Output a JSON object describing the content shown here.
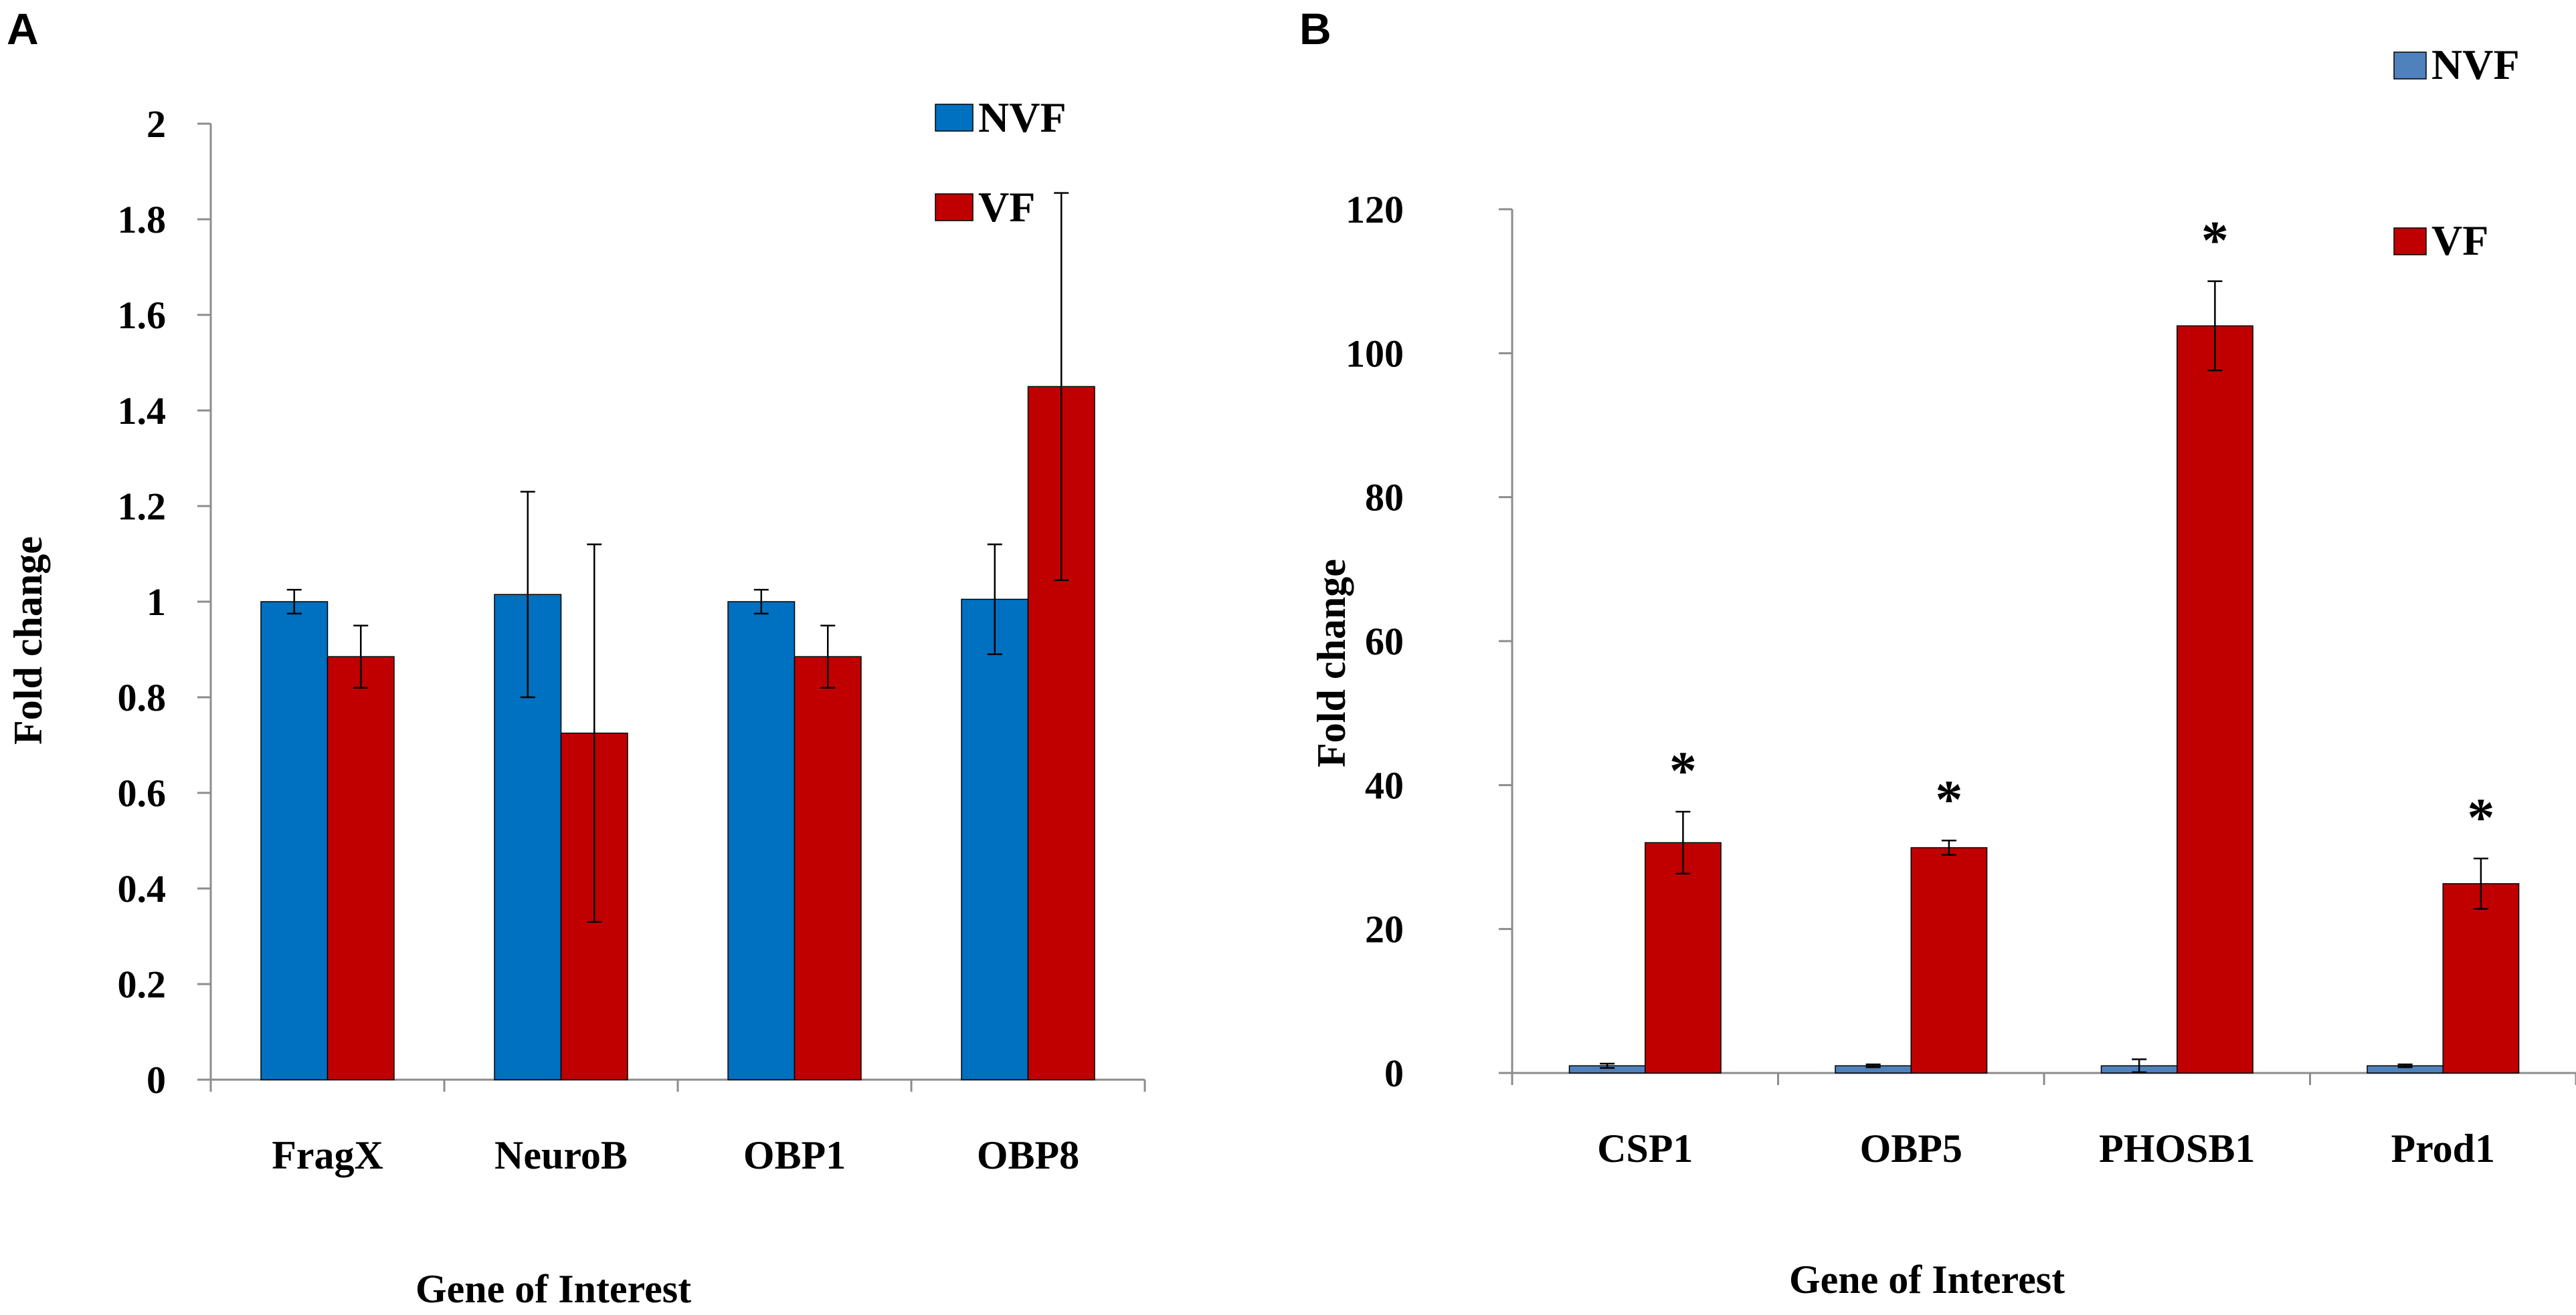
{
  "chart_data": [
    {
      "panel": "A",
      "type": "bar",
      "title": "",
      "xlabel": "Gene of Interest",
      "ylabel": "Fold change",
      "ylim": [
        0,
        2
      ],
      "yticks": [
        0,
        0.2,
        0.4,
        0.6,
        0.8,
        1,
        1.2,
        1.4,
        1.6,
        1.8,
        2
      ],
      "ytick_labels": [
        "0",
        "0.2",
        "0.4",
        "0.6",
        "0.8",
        "1",
        "1.2",
        "1.4",
        "1.6",
        "1.8",
        "2"
      ],
      "categories": [
        "FragX",
        "NeuroB",
        "OBP1",
        "OBP8"
      ],
      "legend_position": "top-right",
      "series": [
        {
          "name": "NVF",
          "color": "#0070c0",
          "values": [
            1.0,
            1.015,
            1.0,
            1.005
          ],
          "errors": [
            0.025,
            0.215,
            0.025,
            0.115
          ]
        },
        {
          "name": "VF",
          "color": "#c00000",
          "values": [
            0.885,
            0.725,
            0.885,
            1.45
          ],
          "errors": [
            0.065,
            0.395,
            0.065,
            0.405
          ]
        }
      ],
      "annotations": []
    },
    {
      "panel": "B",
      "type": "bar",
      "title": "",
      "xlabel": "Gene of Interest",
      "ylabel": "Fold change",
      "ylim": [
        0,
        120
      ],
      "yticks": [
        0,
        20,
        40,
        60,
        80,
        100,
        120
      ],
      "ytick_labels": [
        "0",
        "20",
        "40",
        "60",
        "80",
        "100",
        "120"
      ],
      "categories": [
        "CSP1",
        "OBP5",
        "PHOSB1",
        "Prod1"
      ],
      "legend_position": "top-right",
      "series": [
        {
          "name": "NVF",
          "color": "#4f81bd",
          "values": [
            1.0,
            1.0,
            1.0,
            1.0
          ],
          "errors": [
            0.3,
            0.2,
            0.9,
            0.2
          ]
        },
        {
          "name": "VF",
          "color": "#c00000",
          "values": [
            32.0,
            31.3,
            103.8,
            26.3
          ],
          "errors": [
            4.3,
            1.0,
            6.2,
            3.5
          ]
        }
      ],
      "annotations": [
        {
          "text": "*",
          "category": "CSP1"
        },
        {
          "text": "*",
          "category": "OBP5"
        },
        {
          "text": "*",
          "category": "PHOSB1"
        },
        {
          "text": "*",
          "category": "Prod1"
        }
      ]
    }
  ]
}
